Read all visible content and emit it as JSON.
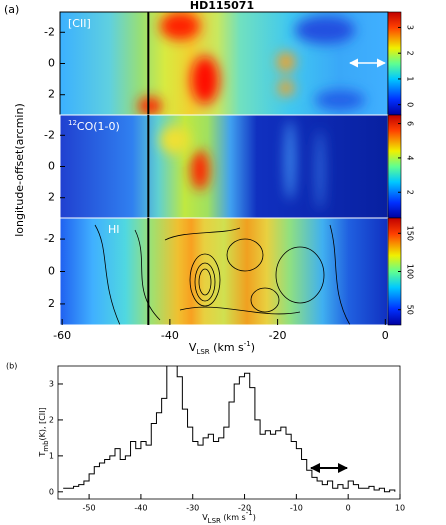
{
  "chart_data": [
    {
      "type": "heatmap",
      "panel_label": "(a)",
      "title": "HD115071",
      "x_label_parts": [
        "V",
        "LSR",
        " (km s",
        "-1",
        ")"
      ],
      "y_label": "longitude-offset(arcmin)",
      "xlim": [
        -60.4,
        0.5
      ],
      "xticks": [
        -60,
        -40,
        -20,
        0
      ],
      "ylim": [
        -3.3,
        3.3
      ],
      "yticks": [
        -2,
        0,
        2
      ],
      "marker_velocity": -44,
      "panels": [
        {
          "label_parts": [
            "",
            "[CII]"
          ],
          "clim": [
            -0.4,
            3.6
          ],
          "cticks": [
            3,
            2,
            1,
            0
          ]
        },
        {
          "label_parts": [
            "12",
            "CO(1-0)"
          ],
          "clim": [
            0.5,
            6.5
          ],
          "cticks": [
            6,
            4,
            2
          ]
        },
        {
          "label_parts": [
            "",
            "HI"
          ],
          "clim": [
            30,
            170
          ],
          "cticks": [
            150,
            100,
            50
          ]
        }
      ]
    },
    {
      "type": "line",
      "panel_label": "(b)",
      "x_label_parts": [
        "V",
        "LSR",
        " (km s",
        "-1",
        ")"
      ],
      "y_label_parts": [
        "T",
        "mb",
        "(K), [CII]"
      ],
      "xlim": [
        -56,
        10
      ],
      "xticks": [
        -50,
        -40,
        -30,
        -20,
        -10,
        0,
        10
      ],
      "ylim": [
        -0.2,
        3.5
      ],
      "yticks": [
        0,
        1,
        2,
        3
      ],
      "x": [
        -55,
        -54,
        -53,
        -52,
        -51,
        -50,
        -49,
        -48,
        -47,
        -46,
        -45,
        -44,
        -43,
        -42,
        -41,
        -40,
        -39,
        -38,
        -37,
        -36,
        -35,
        -34,
        -33,
        -32,
        -31,
        -30,
        -29,
        -28,
        -27,
        -26,
        -25,
        -24,
        -23,
        -22,
        -21,
        -20,
        -19,
        -18,
        -17,
        -16,
        -15,
        -14,
        -13,
        -12,
        -11,
        -10,
        -9,
        -8,
        -7,
        -6,
        -5,
        -4,
        -3,
        -2,
        -1,
        0,
        1,
        2,
        3,
        4,
        5,
        6,
        7,
        8,
        9
      ],
      "values": [
        0.1,
        0.1,
        0.15,
        0.2,
        0.3,
        0.5,
        0.7,
        0.8,
        0.9,
        1.0,
        1.2,
        0.9,
        1.0,
        1.4,
        1.2,
        1.4,
        1.3,
        1.9,
        2.2,
        2.6,
        3.6,
        3.6,
        3.2,
        2.3,
        1.8,
        1.4,
        1.3,
        1.5,
        1.6,
        1.4,
        1.5,
        1.8,
        2.5,
        3.0,
        3.2,
        3.3,
        2.9,
        2.0,
        1.6,
        1.7,
        1.6,
        1.7,
        1.8,
        1.6,
        1.4,
        1.2,
        0.9,
        0.6,
        0.4,
        0.3,
        0.2,
        0.3,
        0.1,
        0.2,
        0.1,
        0.3,
        0.2,
        0.1,
        0.1,
        0.15,
        0.05,
        0.1,
        0.0,
        0.05,
        0.0
      ],
      "color": "#000000"
    }
  ]
}
